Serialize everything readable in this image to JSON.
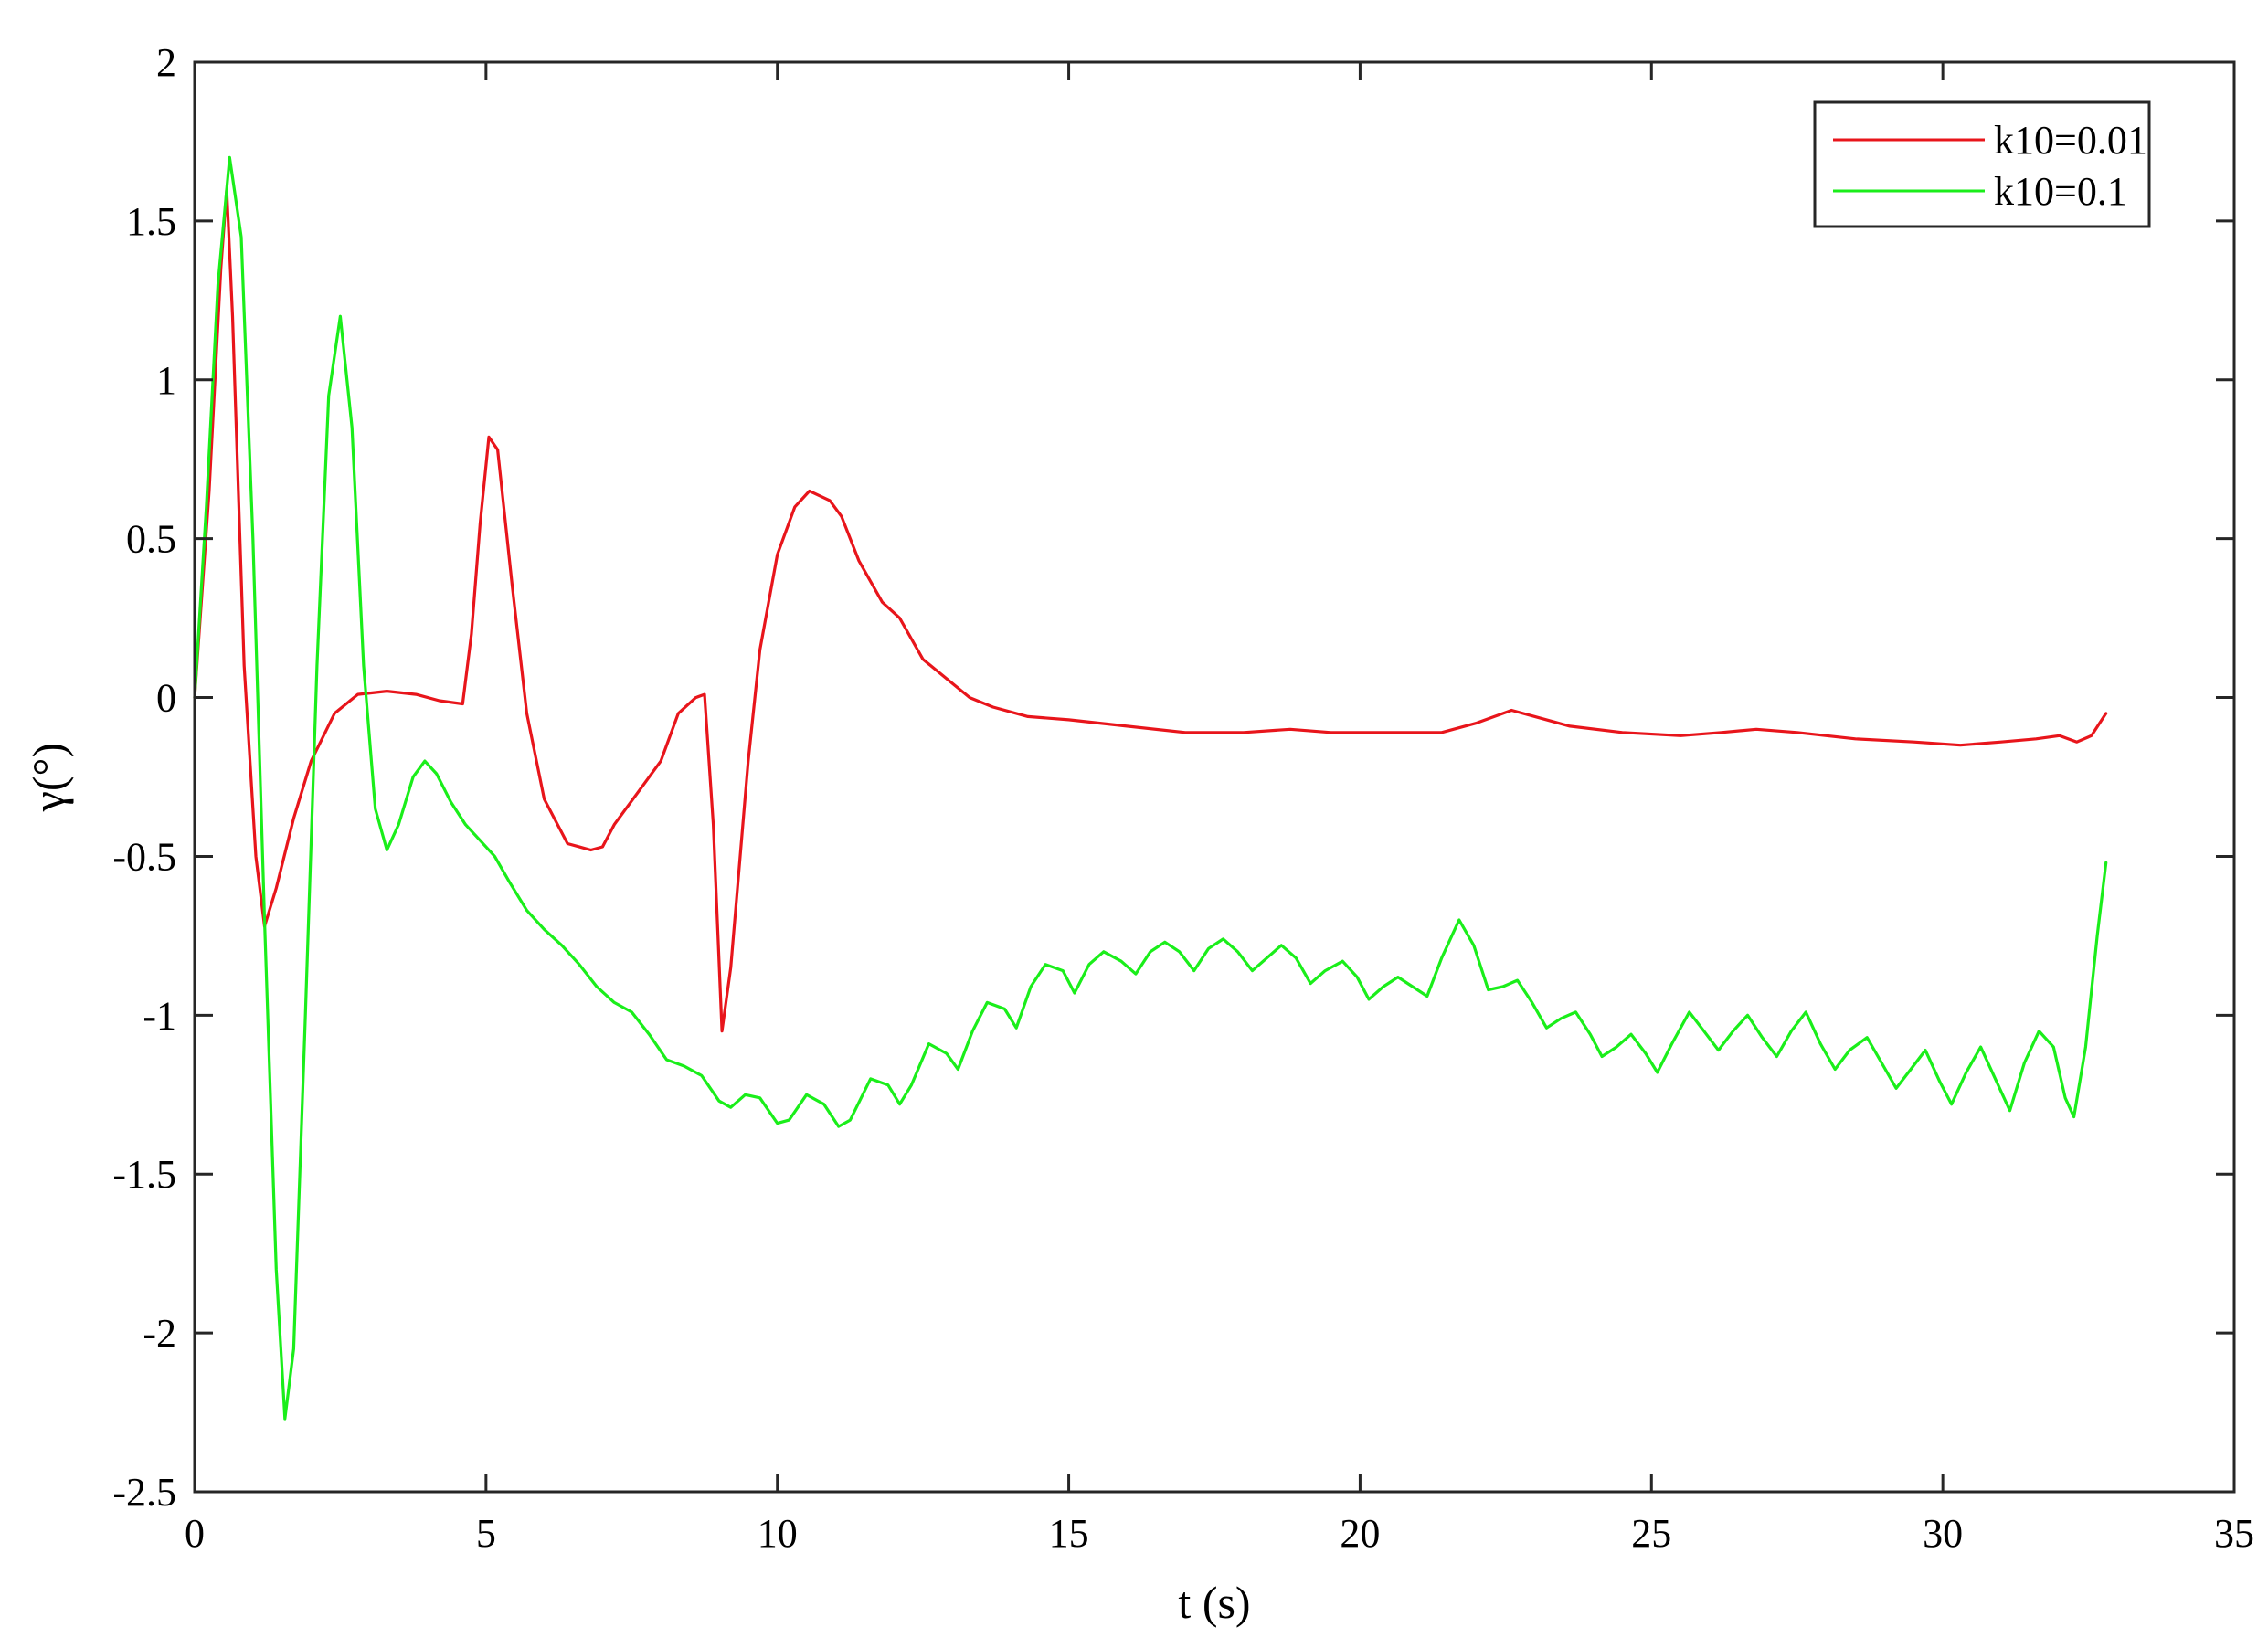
{
  "chart_data": {
    "type": "line",
    "xlabel": "t (s)",
    "ylabel": "γ(°)",
    "xlim": [
      0,
      35
    ],
    "ylim": [
      -2.5,
      2
    ],
    "xticks": [
      0,
      5,
      10,
      15,
      20,
      25,
      30,
      35
    ],
    "yticks": [
      2,
      1.5,
      1,
      0.5,
      0,
      -0.5,
      -1,
      -1.5,
      -2,
      -2.5
    ],
    "xtick_labels": [
      "0",
      "5",
      "10",
      "15",
      "20",
      "25",
      "30",
      "35"
    ],
    "ytick_labels": [
      "2",
      "1.5",
      "1",
      "0.5",
      "0",
      "-0.5",
      "-1",
      "-1.5",
      "-2",
      "-2.5"
    ],
    "grid": false,
    "legend_position": "top-right",
    "series": [
      {
        "name": "k10=0.01",
        "color": "#e8151b",
        "points": [
          [
            0,
            0
          ],
          [
            0.25,
            0.65
          ],
          [
            0.45,
            1.35
          ],
          [
            0.55,
            1.6
          ],
          [
            0.65,
            1.2
          ],
          [
            0.85,
            0.1
          ],
          [
            1.05,
            -0.5
          ],
          [
            1.2,
            -0.72
          ],
          [
            1.4,
            -0.6
          ],
          [
            1.7,
            -0.38
          ],
          [
            2.0,
            -0.2
          ],
          [
            2.4,
            -0.05
          ],
          [
            2.8,
            0.01
          ],
          [
            3.3,
            0.02
          ],
          [
            3.8,
            0.01
          ],
          [
            4.2,
            -0.01
          ],
          [
            4.6,
            -0.02
          ],
          [
            4.75,
            0.2
          ],
          [
            4.9,
            0.55
          ],
          [
            5.05,
            0.82
          ],
          [
            5.2,
            0.78
          ],
          [
            5.45,
            0.35
          ],
          [
            5.7,
            -0.05
          ],
          [
            6.0,
            -0.32
          ],
          [
            6.4,
            -0.46
          ],
          [
            6.8,
            -0.48
          ],
          [
            7.0,
            -0.47
          ],
          [
            7.2,
            -0.4
          ],
          [
            7.6,
            -0.3
          ],
          [
            8.0,
            -0.2
          ],
          [
            8.3,
            -0.05
          ],
          [
            8.6,
            0.0
          ],
          [
            8.75,
            0.01
          ],
          [
            8.9,
            -0.4
          ],
          [
            9.05,
            -1.05
          ],
          [
            9.2,
            -0.85
          ],
          [
            9.5,
            -0.2
          ],
          [
            9.7,
            0.15
          ],
          [
            10.0,
            0.45
          ],
          [
            10.3,
            0.6
          ],
          [
            10.55,
            0.65
          ],
          [
            10.9,
            0.62
          ],
          [
            11.1,
            0.57
          ],
          [
            11.4,
            0.43
          ],
          [
            11.8,
            0.3
          ],
          [
            12.1,
            0.25
          ],
          [
            12.5,
            0.12
          ],
          [
            12.9,
            0.06
          ],
          [
            13.3,
            0.0
          ],
          [
            13.7,
            -0.03
          ],
          [
            14.3,
            -0.06
          ],
          [
            15.0,
            -0.07
          ],
          [
            16.0,
            -0.09
          ],
          [
            17.0,
            -0.11
          ],
          [
            18.0,
            -0.11
          ],
          [
            18.8,
            -0.1
          ],
          [
            19.5,
            -0.11
          ],
          [
            20.5,
            -0.11
          ],
          [
            21.4,
            -0.11
          ],
          [
            22.0,
            -0.08
          ],
          [
            22.6,
            -0.04
          ],
          [
            23.0,
            -0.06
          ],
          [
            23.6,
            -0.09
          ],
          [
            24.5,
            -0.11
          ],
          [
            25.5,
            -0.12
          ],
          [
            26.2,
            -0.11
          ],
          [
            26.8,
            -0.1
          ],
          [
            27.5,
            -0.11
          ],
          [
            28.5,
            -0.13
          ],
          [
            29.5,
            -0.14
          ],
          [
            30.3,
            -0.15
          ],
          [
            31.0,
            -0.14
          ],
          [
            31.6,
            -0.13
          ],
          [
            32.0,
            -0.12
          ],
          [
            32.3,
            -0.14
          ],
          [
            32.55,
            -0.12
          ],
          [
            32.8,
            -0.05
          ]
        ]
      },
      {
        "name": "k10=0.1",
        "color": "#1aee1a",
        "points": [
          [
            0,
            0
          ],
          [
            0.2,
            0.6
          ],
          [
            0.4,
            1.3
          ],
          [
            0.6,
            1.7
          ],
          [
            0.8,
            1.45
          ],
          [
            1.0,
            0.5
          ],
          [
            1.2,
            -0.7
          ],
          [
            1.4,
            -1.8
          ],
          [
            1.55,
            -2.27
          ],
          [
            1.7,
            -2.05
          ],
          [
            1.9,
            -1.0
          ],
          [
            2.1,
            0.1
          ],
          [
            2.3,
            0.95
          ],
          [
            2.5,
            1.2
          ],
          [
            2.7,
            0.85
          ],
          [
            2.9,
            0.1
          ],
          [
            3.1,
            -0.35
          ],
          [
            3.3,
            -0.48
          ],
          [
            3.5,
            -0.4
          ],
          [
            3.75,
            -0.25
          ],
          [
            3.95,
            -0.2
          ],
          [
            4.15,
            -0.24
          ],
          [
            4.4,
            -0.33
          ],
          [
            4.65,
            -0.4
          ],
          [
            4.9,
            -0.45
          ],
          [
            5.15,
            -0.5
          ],
          [
            5.4,
            -0.58
          ],
          [
            5.7,
            -0.67
          ],
          [
            6.0,
            -0.73
          ],
          [
            6.3,
            -0.78
          ],
          [
            6.6,
            -0.84
          ],
          [
            6.9,
            -0.91
          ],
          [
            7.2,
            -0.96
          ],
          [
            7.5,
            -0.99
          ],
          [
            7.8,
            -1.06
          ],
          [
            8.1,
            -1.14
          ],
          [
            8.4,
            -1.16
          ],
          [
            8.7,
            -1.19
          ],
          [
            9.0,
            -1.27
          ],
          [
            9.2,
            -1.29
          ],
          [
            9.45,
            -1.25
          ],
          [
            9.7,
            -1.26
          ],
          [
            10.0,
            -1.34
          ],
          [
            10.2,
            -1.33
          ],
          [
            10.5,
            -1.25
          ],
          [
            10.8,
            -1.28
          ],
          [
            11.05,
            -1.35
          ],
          [
            11.25,
            -1.33
          ],
          [
            11.6,
            -1.2
          ],
          [
            11.9,
            -1.22
          ],
          [
            12.1,
            -1.28
          ],
          [
            12.3,
            -1.22
          ],
          [
            12.6,
            -1.09
          ],
          [
            12.9,
            -1.12
          ],
          [
            13.1,
            -1.17
          ],
          [
            13.35,
            -1.05
          ],
          [
            13.6,
            -0.96
          ],
          [
            13.9,
            -0.98
          ],
          [
            14.1,
            -1.04
          ],
          [
            14.35,
            -0.91
          ],
          [
            14.6,
            -0.84
          ],
          [
            14.9,
            -0.86
          ],
          [
            15.1,
            -0.93
          ],
          [
            15.35,
            -0.84
          ],
          [
            15.6,
            -0.8
          ],
          [
            15.9,
            -0.83
          ],
          [
            16.15,
            -0.87
          ],
          [
            16.4,
            -0.8
          ],
          [
            16.65,
            -0.77
          ],
          [
            16.9,
            -0.8
          ],
          [
            17.15,
            -0.86
          ],
          [
            17.4,
            -0.79
          ],
          [
            17.65,
            -0.76
          ],
          [
            17.9,
            -0.8
          ],
          [
            18.15,
            -0.86
          ],
          [
            18.4,
            -0.82
          ],
          [
            18.65,
            -0.78
          ],
          [
            18.9,
            -0.82
          ],
          [
            19.15,
            -0.9
          ],
          [
            19.4,
            -0.86
          ],
          [
            19.7,
            -0.83
          ],
          [
            19.95,
            -0.88
          ],
          [
            20.15,
            -0.95
          ],
          [
            20.4,
            -0.91
          ],
          [
            20.65,
            -0.88
          ],
          [
            20.9,
            -0.91
          ],
          [
            21.15,
            -0.94
          ],
          [
            21.4,
            -0.82
          ],
          [
            21.7,
            -0.7
          ],
          [
            21.95,
            -0.78
          ],
          [
            22.2,
            -0.92
          ],
          [
            22.45,
            -0.91
          ],
          [
            22.7,
            -0.89
          ],
          [
            22.95,
            -0.96
          ],
          [
            23.2,
            -1.04
          ],
          [
            23.45,
            -1.01
          ],
          [
            23.7,
            -0.99
          ],
          [
            23.95,
            -1.06
          ],
          [
            24.15,
            -1.13
          ],
          [
            24.4,
            -1.1
          ],
          [
            24.65,
            -1.06
          ],
          [
            24.9,
            -1.12
          ],
          [
            25.1,
            -1.18
          ],
          [
            25.35,
            -1.09
          ],
          [
            25.65,
            -0.99
          ],
          [
            25.9,
            -1.05
          ],
          [
            26.15,
            -1.11
          ],
          [
            26.4,
            -1.05
          ],
          [
            26.65,
            -1.0
          ],
          [
            26.9,
            -1.07
          ],
          [
            27.15,
            -1.13
          ],
          [
            27.4,
            -1.05
          ],
          [
            27.65,
            -0.99
          ],
          [
            27.9,
            -1.09
          ],
          [
            28.15,
            -1.17
          ],
          [
            28.4,
            -1.11
          ],
          [
            28.7,
            -1.07
          ],
          [
            28.95,
            -1.15
          ],
          [
            29.2,
            -1.23
          ],
          [
            29.45,
            -1.17
          ],
          [
            29.7,
            -1.11
          ],
          [
            29.95,
            -1.21
          ],
          [
            30.15,
            -1.28
          ],
          [
            30.4,
            -1.18
          ],
          [
            30.65,
            -1.1
          ],
          [
            30.95,
            -1.22
          ],
          [
            31.15,
            -1.3
          ],
          [
            31.4,
            -1.15
          ],
          [
            31.65,
            -1.05
          ],
          [
            31.9,
            -1.1
          ],
          [
            32.1,
            -1.26
          ],
          [
            32.25,
            -1.32
          ],
          [
            32.45,
            -1.1
          ],
          [
            32.65,
            -0.75
          ],
          [
            32.8,
            -0.52
          ]
        ]
      }
    ]
  }
}
